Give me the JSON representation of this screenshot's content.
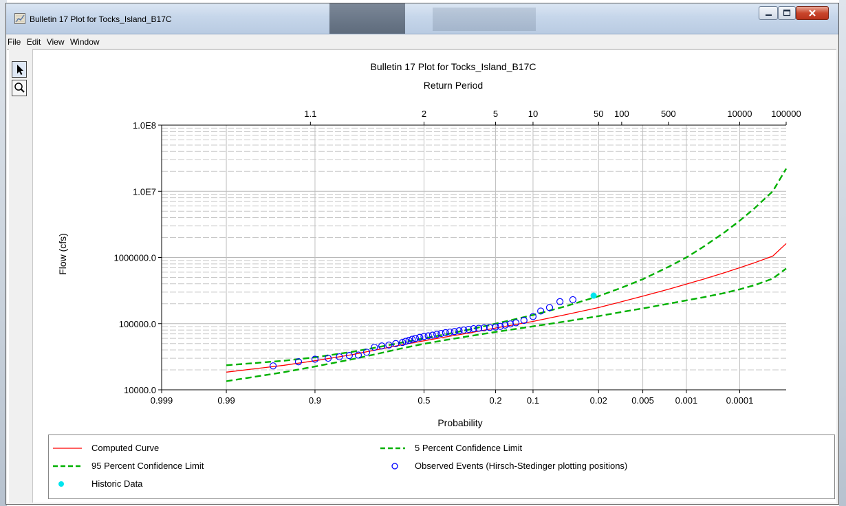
{
  "window": {
    "title": "Bulletin 17 Plot for Tocks_Island_B17C",
    "buttons": [
      "minimize-button",
      "maximize-button",
      "close-button"
    ]
  },
  "menu": [
    "File",
    "Edit",
    "View",
    "Window"
  ],
  "toolbar": {
    "tools": [
      "select-arrow-icon",
      "zoom-magnifier-icon"
    ]
  },
  "chart_data": {
    "type": "scatter",
    "title": "Bulletin 17 Plot for Tocks_Island_B17C",
    "top_axis_label": "Return Period",
    "top_ticks": [
      {
        "label": "1.1",
        "p": 0.9091
      },
      {
        "label": "2",
        "p": 0.5
      },
      {
        "label": "5",
        "p": 0.2
      },
      {
        "label": "10",
        "p": 0.1
      },
      {
        "label": "50",
        "p": 0.02
      },
      {
        "label": "100",
        "p": 0.01
      },
      {
        "label": "500",
        "p": 0.002
      },
      {
        "label": "10000",
        "p": 0.0001
      },
      {
        "label": "100000",
        "p": 1e-05
      }
    ],
    "xlabel": "Probability",
    "ylabel": "Flow (cfs)",
    "x_ticks": [
      {
        "label": "0.999",
        "p": 0.999
      },
      {
        "label": "0.99",
        "p": 0.99
      },
      {
        "label": "0.9",
        "p": 0.9
      },
      {
        "label": "0.5",
        "p": 0.5
      },
      {
        "label": "0.2",
        "p": 0.2
      },
      {
        "label": "0.1",
        "p": 0.1
      },
      {
        "label": "0.02",
        "p": 0.02
      },
      {
        "label": "0.005",
        "p": 0.005
      },
      {
        "label": "0.001",
        "p": 0.001
      },
      {
        "label": "0.0001",
        "p": 0.0001
      }
    ],
    "y_ticks": [
      {
        "label": "10000.0",
        "v": 10000
      },
      {
        "label": "100000.0",
        "v": 100000
      },
      {
        "label": "1000000.0",
        "v": 1000000
      },
      {
        "label": "1.0E7",
        "v": 10000000
      },
      {
        "label": "1.0E8",
        "v": 100000000
      }
    ],
    "xlim": [
      0.999,
      1e-05
    ],
    "ylim": [
      10000,
      100000000
    ],
    "x_scale": "normal-probability",
    "y_scale": "log",
    "grid": true,
    "legend_position": "bottom",
    "colors": {
      "computed": "#ff0000",
      "confidence": "#00b000",
      "observed": "#0000ff",
      "historic": "#00e5ee"
    },
    "series": [
      {
        "name": "Computed Curve",
        "style": "solid",
        "points": [
          [
            0.99,
            18500
          ],
          [
            0.95,
            23500
          ],
          [
            0.9,
            27500
          ],
          [
            0.8,
            34000
          ],
          [
            0.7,
            41000
          ],
          [
            0.6,
            48000
          ],
          [
            0.5,
            55000
          ],
          [
            0.4,
            63000
          ],
          [
            0.3,
            72000
          ],
          [
            0.2,
            86000
          ],
          [
            0.1,
            108000
          ],
          [
            0.05,
            135000
          ],
          [
            0.02,
            175000
          ],
          [
            0.01,
            215000
          ],
          [
            0.005,
            260000
          ],
          [
            0.002,
            330000
          ],
          [
            0.001,
            395000
          ],
          [
            0.0005,
            470000
          ],
          [
            0.0002,
            590000
          ],
          [
            0.0001,
            700000
          ],
          [
            5e-05,
            830000
          ],
          [
            2e-05,
            1050000
          ],
          [
            1e-05,
            1620000
          ]
        ]
      },
      {
        "name": "5 Percent Confidence Limit",
        "style": "dashed",
        "points": [
          [
            0.99,
            23500
          ],
          [
            0.95,
            27500
          ],
          [
            0.9,
            31000
          ],
          [
            0.8,
            37500
          ],
          [
            0.7,
            44500
          ],
          [
            0.6,
            52000
          ],
          [
            0.5,
            60000
          ],
          [
            0.4,
            69000
          ],
          [
            0.3,
            81000
          ],
          [
            0.2,
            100000
          ],
          [
            0.1,
            135000
          ],
          [
            0.05,
            180000
          ],
          [
            0.02,
            260000
          ],
          [
            0.01,
            350000
          ],
          [
            0.005,
            470000
          ],
          [
            0.002,
            720000
          ],
          [
            0.001,
            1000000
          ],
          [
            0.0005,
            1450000
          ],
          [
            0.0002,
            2400000
          ],
          [
            0.0001,
            3600000
          ],
          [
            5e-05,
            5500000
          ],
          [
            2e-05,
            10000000
          ],
          [
            1e-05,
            22000000
          ]
        ]
      },
      {
        "name": "95 Percent Confidence Limit",
        "style": "dashed",
        "points": [
          [
            0.99,
            13500
          ],
          [
            0.95,
            18500
          ],
          [
            0.9,
            22500
          ],
          [
            0.8,
            29000
          ],
          [
            0.7,
            35500
          ],
          [
            0.6,
            42500
          ],
          [
            0.5,
            49500
          ],
          [
            0.4,
            56500
          ],
          [
            0.3,
            64500
          ],
          [
            0.2,
            75000
          ],
          [
            0.1,
            91000
          ],
          [
            0.05,
            107000
          ],
          [
            0.02,
            130000
          ],
          [
            0.01,
            150000
          ],
          [
            0.005,
            170000
          ],
          [
            0.002,
            200000
          ],
          [
            0.001,
            225000
          ],
          [
            0.0005,
            250000
          ],
          [
            0.0002,
            290000
          ],
          [
            0.0001,
            330000
          ],
          [
            5e-05,
            380000
          ],
          [
            2e-05,
            480000
          ],
          [
            1e-05,
            680000
          ]
        ]
      },
      {
        "name": "Observed Events (Hirsch-Stedinger plotting positions)",
        "style": "circle",
        "points": [
          [
            0.962,
            23000
          ],
          [
            0.93,
            26500
          ],
          [
            0.9,
            29000
          ],
          [
            0.87,
            30000
          ],
          [
            0.84,
            31500
          ],
          [
            0.81,
            33000
          ],
          [
            0.78,
            33500
          ],
          [
            0.75,
            37000
          ],
          [
            0.72,
            44000
          ],
          [
            0.69,
            46000
          ],
          [
            0.66,
            47500
          ],
          [
            0.63,
            50000
          ],
          [
            0.6,
            52000
          ],
          [
            0.585,
            54000
          ],
          [
            0.57,
            56000
          ],
          [
            0.555,
            58000
          ],
          [
            0.54,
            60000
          ],
          [
            0.52,
            62000
          ],
          [
            0.5,
            64000
          ],
          [
            0.48,
            65500
          ],
          [
            0.46,
            67000
          ],
          [
            0.44,
            69000
          ],
          [
            0.42,
            71000
          ],
          [
            0.4,
            73000
          ],
          [
            0.38,
            74500
          ],
          [
            0.36,
            76000
          ],
          [
            0.34,
            78000
          ],
          [
            0.32,
            80000
          ],
          [
            0.3,
            82000
          ],
          [
            0.28,
            84000
          ],
          [
            0.26,
            85000
          ],
          [
            0.24,
            86500
          ],
          [
            0.22,
            87500
          ],
          [
            0.2,
            89000
          ],
          [
            0.185,
            91000
          ],
          [
            0.17,
            95000
          ],
          [
            0.155,
            99000
          ],
          [
            0.14,
            103000
          ],
          [
            0.12,
            112000
          ],
          [
            0.1,
            128000
          ],
          [
            0.085,
            155000
          ],
          [
            0.07,
            175000
          ],
          [
            0.055,
            215000
          ],
          [
            0.04,
            230000
          ]
        ]
      },
      {
        "name": "Historic Data",
        "style": "filled-circle",
        "points": [
          [
            0.023,
            265000
          ]
        ]
      }
    ]
  }
}
